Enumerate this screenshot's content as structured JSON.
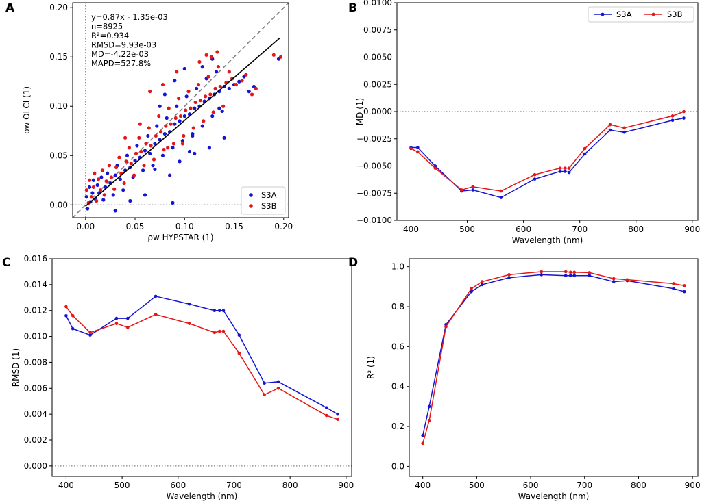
{
  "colors": {
    "S3A": "#1414d2",
    "S3B": "#e51616",
    "fit": "#000000",
    "identity": "#808080",
    "zero": "#808080"
  },
  "chart_data": [
    {
      "panel": "A",
      "type": "scatter",
      "xlabel": "ρw HYPSTAR (1)",
      "ylabel": "ρw OLCI (1)",
      "xlim": [
        -0.013,
        0.205
      ],
      "ylim": [
        -0.013,
        0.205
      ],
      "xticks": [
        "0.00",
        "0.05",
        "0.10",
        "0.15",
        "0.20"
      ],
      "yticks": [
        "0.00",
        "0.05",
        "0.10",
        "0.15",
        "0.20"
      ],
      "legend": {
        "position": "bottom-right",
        "entries": [
          "S3A",
          "S3B"
        ]
      },
      "stats": [
        "y=0.87x - 1.35e-03",
        "n=8925",
        "R²=0.934",
        "RMSD=9.93e-03",
        "MD=-4.22e-03",
        "MAPD=527.8%"
      ],
      "fit": {
        "slope": 0.87,
        "intercept": -0.00135
      },
      "n": 8925,
      "series": [
        {
          "name": "S3A",
          "x": [
            0.001,
            0.002,
            0.004,
            0.005,
            0.007,
            0.008,
            0.01,
            0.012,
            0.014,
            0.016,
            0.018,
            0.02,
            0.022,
            0.025,
            0.028,
            0.03,
            0.032,
            0.035,
            0.038,
            0.04,
            0.042,
            0.045,
            0.048,
            0.05,
            0.052,
            0.055,
            0.058,
            0.06,
            0.063,
            0.065,
            0.068,
            0.07,
            0.072,
            0.075,
            0.078,
            0.08,
            0.082,
            0.085,
            0.088,
            0.09,
            0.092,
            0.095,
            0.098,
            0.1,
            0.102,
            0.105,
            0.108,
            0.11,
            0.112,
            0.115,
            0.118,
            0.12,
            0.122,
            0.125,
            0.128,
            0.13,
            0.132,
            0.135,
            0.138,
            0.14,
            0.145,
            0.15,
            0.155,
            0.16,
            0.165,
            0.17,
            0.195,
            0.06,
            0.07,
            0.085,
            0.11,
            0.125,
            0.14,
            0.09,
            0.1,
            0.03,
            0.045,
            0.08,
            0.105,
            0.118,
            0.128,
            0.075,
            0.095,
            0.135,
            0.088,
            0.108
          ],
          "y": [
            0.008,
            -0.004,
            0.018,
            0.003,
            0.012,
            0.025,
            0.006,
            0.02,
            0.012,
            0.028,
            0.005,
            0.018,
            0.032,
            0.022,
            0.01,
            0.03,
            0.04,
            0.026,
            0.015,
            0.035,
            0.05,
            0.038,
            0.028,
            0.045,
            0.06,
            0.048,
            0.035,
            0.055,
            0.07,
            0.052,
            0.04,
            0.062,
            0.08,
            0.066,
            0.05,
            0.072,
            0.088,
            0.074,
            0.058,
            0.082,
            0.1,
            0.085,
            0.065,
            0.09,
            0.11,
            0.092,
            0.072,
            0.098,
            0.118,
            0.1,
            0.08,
            0.105,
            0.128,
            0.108,
            0.09,
            0.112,
            0.135,
            0.115,
            0.095,
            0.12,
            0.118,
            0.122,
            0.125,
            0.13,
            0.115,
            0.12,
            0.148,
            0.01,
            0.036,
            0.03,
            0.052,
            0.058,
            0.068,
            0.126,
            0.138,
            -0.006,
            0.004,
            0.112,
            0.054,
            0.14,
            0.148,
            0.1,
            0.044,
            0.098,
            0.002,
            0.07
          ]
        },
        {
          "name": "S3B",
          "x": [
            0.001,
            0.003,
            0.004,
            0.006,
            0.008,
            0.009,
            0.011,
            0.013,
            0.015,
            0.017,
            0.019,
            0.021,
            0.024,
            0.026,
            0.029,
            0.031,
            0.034,
            0.036,
            0.039,
            0.041,
            0.044,
            0.046,
            0.049,
            0.051,
            0.054,
            0.056,
            0.059,
            0.061,
            0.064,
            0.066,
            0.069,
            0.071,
            0.074,
            0.076,
            0.079,
            0.081,
            0.084,
            0.086,
            0.089,
            0.091,
            0.094,
            0.096,
            0.099,
            0.101,
            0.104,
            0.106,
            0.109,
            0.111,
            0.114,
            0.116,
            0.119,
            0.121,
            0.124,
            0.126,
            0.129,
            0.131,
            0.134,
            0.136,
            0.139,
            0.142,
            0.148,
            0.152,
            0.158,
            0.162,
            0.168,
            0.172,
            0.19,
            0.197,
            0.065,
            0.078,
            0.092,
            0.115,
            0.122,
            0.04,
            0.055,
            0.083,
            0.098,
            0.127,
            0.133,
            0.145
          ],
          "y": [
            0.015,
            0.002,
            0.025,
            0.008,
            0.018,
            0.032,
            0.004,
            0.026,
            0.015,
            0.035,
            0.01,
            0.024,
            0.04,
            0.028,
            0.016,
            0.038,
            0.048,
            0.032,
            0.022,
            0.044,
            0.058,
            0.042,
            0.03,
            0.052,
            0.068,
            0.054,
            0.04,
            0.062,
            0.078,
            0.06,
            0.046,
            0.07,
            0.09,
            0.074,
            0.056,
            0.08,
            0.098,
            0.082,
            0.062,
            0.088,
            0.108,
            0.09,
            0.07,
            0.096,
            0.115,
            0.098,
            0.078,
            0.104,
            0.122,
            0.106,
            0.085,
            0.11,
            0.13,
            0.112,
            0.094,
            0.118,
            0.14,
            0.12,
            0.1,
            0.124,
            0.128,
            0.122,
            0.126,
            0.132,
            0.112,
            0.118,
            0.152,
            0.15,
            0.115,
            0.122,
            0.135,
            0.145,
            0.152,
            0.068,
            0.082,
            0.058,
            0.062,
            0.15,
            0.155,
            0.135
          ]
        }
      ]
    },
    {
      "panel": "B",
      "type": "line",
      "xlabel": "Wavelength (nm)",
      "ylabel": "MD (1)",
      "xlim": [
        375,
        910
      ],
      "ylim": [
        -0.01,
        0.01
      ],
      "xticks": [
        "400",
        "500",
        "600",
        "700",
        "800",
        "900"
      ],
      "yticks": [
        "−0.0100",
        "−0.0075",
        "−0.0050",
        "−0.0025",
        "0.0000",
        "0.0025",
        "0.0050",
        "0.0075",
        "0.0100"
      ],
      "legend": {
        "position": "top-right",
        "entries": [
          "S3A",
          "S3B"
        ]
      },
      "categories": [
        400,
        412,
        443,
        490,
        510,
        560,
        620,
        665,
        674,
        681,
        709,
        754,
        779,
        865,
        885
      ],
      "series": [
        {
          "name": "S3A",
          "values": [
            -0.0033,
            -0.0033,
            -0.005,
            -0.0073,
            -0.0072,
            -0.0079,
            -0.0062,
            -0.0055,
            -0.0055,
            -0.0056,
            -0.0039,
            -0.0017,
            -0.0019,
            -0.0008,
            -0.0006
          ]
        },
        {
          "name": "S3B",
          "values": [
            -0.0034,
            -0.0037,
            -0.0052,
            -0.0072,
            -0.0069,
            -0.0073,
            -0.0058,
            -0.0052,
            -0.0052,
            -0.0052,
            -0.0034,
            -0.0012,
            -0.0015,
            -0.0004,
            0.0
          ]
        }
      ]
    },
    {
      "panel": "C",
      "type": "line",
      "xlabel": "Wavelength (nm)",
      "ylabel": "RMSD (1)",
      "xlim": [
        375,
        910
      ],
      "ylim": [
        -0.0008,
        0.016
      ],
      "xticks": [
        "400",
        "500",
        "600",
        "700",
        "800",
        "900"
      ],
      "yticks": [
        "0.000",
        "0.002",
        "0.004",
        "0.006",
        "0.008",
        "0.010",
        "0.012",
        "0.014",
        "0.016"
      ],
      "categories": [
        400,
        412,
        443,
        490,
        510,
        560,
        620,
        665,
        674,
        681,
        709,
        754,
        779,
        865,
        885
      ],
      "series": [
        {
          "name": "S3A",
          "values": [
            0.0116,
            0.0106,
            0.0101,
            0.0114,
            0.0114,
            0.0131,
            0.0125,
            0.012,
            0.012,
            0.012,
            0.0101,
            0.0064,
            0.0065,
            0.0045,
            0.004
          ]
        },
        {
          "name": "S3B",
          "values": [
            0.0123,
            0.0116,
            0.0103,
            0.011,
            0.0107,
            0.0117,
            0.011,
            0.0103,
            0.0104,
            0.0104,
            0.0087,
            0.0055,
            0.006,
            0.0039,
            0.0036
          ]
        }
      ]
    },
    {
      "panel": "D",
      "type": "line",
      "xlabel": "Wavelength (nm)",
      "ylabel": "R² (1)",
      "xlim": [
        375,
        910
      ],
      "ylim": [
        -0.05,
        1.04
      ],
      "xticks": [
        "400",
        "500",
        "600",
        "700",
        "800",
        "900"
      ],
      "yticks": [
        "0.0",
        "0.2",
        "0.4",
        "0.6",
        "0.8",
        "1.0"
      ],
      "categories": [
        400,
        412,
        443,
        490,
        510,
        560,
        620,
        665,
        674,
        681,
        709,
        754,
        779,
        865,
        885
      ],
      "series": [
        {
          "name": "S3A",
          "values": [
            0.155,
            0.3,
            0.71,
            0.875,
            0.91,
            0.945,
            0.96,
            0.955,
            0.955,
            0.955,
            0.955,
            0.925,
            0.93,
            0.89,
            0.875
          ]
        },
        {
          "name": "S3B",
          "values": [
            0.115,
            0.23,
            0.7,
            0.89,
            0.925,
            0.96,
            0.975,
            0.975,
            0.972,
            0.972,
            0.97,
            0.94,
            0.935,
            0.915,
            0.905
          ]
        }
      ]
    }
  ]
}
